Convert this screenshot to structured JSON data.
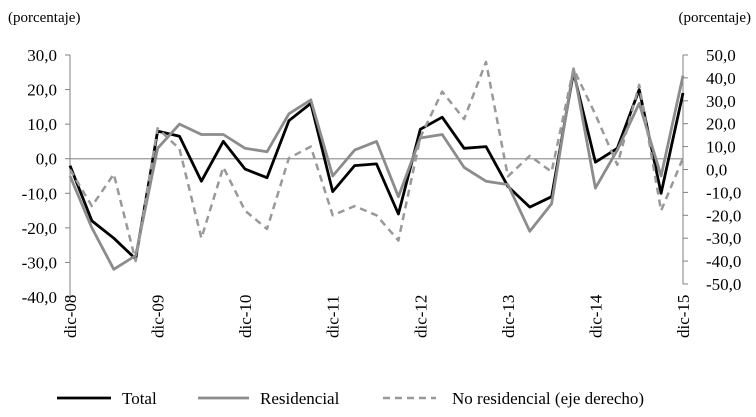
{
  "chart_data": {
    "type": "line",
    "left_unit": "(porcentaje)",
    "right_unit": "(porcentaje)",
    "ylim_left": [
      -40,
      30
    ],
    "ylim_right": [
      -50,
      50
    ],
    "yticks_left": [
      "30,0",
      "20,0",
      "10,0",
      "0,0",
      "-10,0",
      "-20,0",
      "-30,0",
      "-40,0"
    ],
    "yticks_right": [
      "50,0",
      "40,0",
      "30,0",
      "20,0",
      "10,0",
      "0,0",
      "-10,0",
      "-20,0",
      "-30,0",
      "-40,0",
      "-50,0"
    ],
    "x_labels": [
      "dic-08",
      "dic-09",
      "dic-10",
      "dic-11",
      "dic-12",
      "dic-13",
      "dic-14",
      "dic-15"
    ],
    "x_count": 29,
    "x_label_positions": [
      0,
      4,
      8,
      12,
      16,
      20,
      24,
      28
    ],
    "series": [
      {
        "name": "Total",
        "axis": "left",
        "color": "#000000",
        "dash": "none",
        "width": 2.8,
        "values": [
          -2,
          -18,
          -23,
          -29,
          8,
          6.5,
          -6.5,
          5,
          -3,
          -5.5,
          11,
          16,
          -9.5,
          -2,
          -1.5,
          -16,
          8.5,
          12,
          3,
          3.5,
          -8,
          -14,
          -11,
          25,
          -1,
          3,
          20,
          -10,
          19
        ]
      },
      {
        "name": "Residencial",
        "axis": "left",
        "color": "#8c8c8c",
        "dash": "none",
        "width": 2.8,
        "values": [
          -5,
          -20,
          -32,
          -28,
          3,
          10,
          7,
          7,
          3,
          2,
          13,
          17,
          -5,
          2.5,
          5,
          -11,
          6,
          7,
          -2.5,
          -6.5,
          -7.5,
          -21,
          -13,
          26,
          -8.5,
          2.5,
          16,
          -5,
          24
        ]
      },
      {
        "name": "No residencial (eje derecho)",
        "axis": "right",
        "color": "#999999",
        "dash": "7,5",
        "width": 2.5,
        "values": [
          0,
          -16,
          -2,
          -40,
          18,
          9,
          -30,
          1,
          -18,
          -26,
          5,
          10,
          -20,
          -16,
          -20,
          -31,
          14,
          34,
          22,
          47,
          -3,
          6,
          -1,
          44,
          24,
          2,
          37,
          -18,
          5
        ]
      }
    ],
    "legend": [
      "Total",
      "Residencial",
      "No residencial (eje derecho)"
    ],
    "legend_position": "bottom",
    "zero_line_color": "#999999",
    "grid": false
  }
}
